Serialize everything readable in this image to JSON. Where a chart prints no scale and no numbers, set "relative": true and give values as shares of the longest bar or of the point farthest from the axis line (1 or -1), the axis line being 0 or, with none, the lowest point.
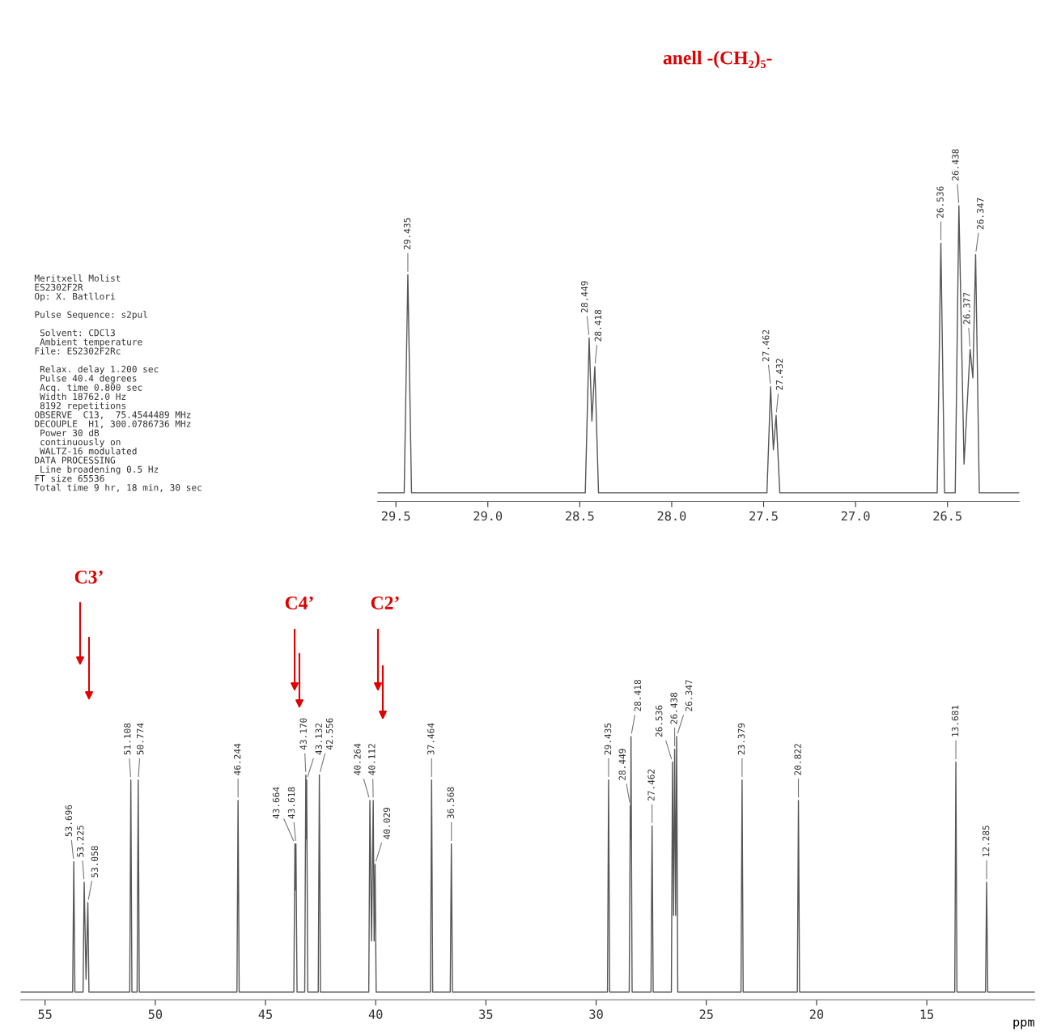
{
  "chart_data": [
    {
      "type": "line",
      "title": "anell -(CH₂)₅-",
      "relative": true,
      "xlim": [
        29.6,
        26.11
      ],
      "xticks": [
        29.5,
        {
          "value": 29.0,
          "label": "29.0"
        },
        28.5,
        {
          "value": 28.0,
          "label": "28.0"
        },
        27.5,
        {
          "value": 27.0,
          "label": "27.0"
        },
        26.5
      ],
      "tick_labels": "x",
      "grid": false,
      "legend": false,
      "marker": "none",
      "line_style": "solid",
      "series": [
        {
          "color": "#555555",
          "x": [
            29.6,
            29.455,
            29.435,
            29.415,
            28.47,
            28.449,
            28.434,
            28.418,
            28.398,
            27.482,
            27.462,
            27.447,
            27.432,
            27.412,
            26.556,
            26.536,
            26.516,
            26.458,
            26.438,
            26.41,
            26.377,
            26.362,
            26.347,
            26.327,
            26.11
          ],
          "values": [
            0,
            0,
            0.76,
            0,
            0,
            0.54,
            0.25,
            0.44,
            0,
            0,
            0.37,
            0.15,
            0.27,
            0,
            0,
            0.87,
            0,
            0,
            1.0,
            0.1,
            0.5,
            0.4,
            0.83,
            0,
            0
          ]
        }
      ],
      "annotations": [
        "Meritxell Molist\nES2302F2R\nOp: X. Batllori\n\nPulse Sequence: s2pul\n\n Solvent: CDCl3\n Ambient temperature\nFile: ES2302F2Rc\n\n Relax. delay 1.200 sec\n Pulse 40.4 degrees\n Acq. time 0.800 sec\n Width 18762.0 Hz\n 8192 repetitions\nOBSERVE  C13,  75.4544489 MHz\nDECOUPLE  H1, 300.0786736 MHz\n Power 30 dB\n continuously on\n WALTZ-16 modulated\nDATA PROCESSING\n Line broadening 0.5 Hz\nFT size 65536\nTotal time 9 hr, 18 min, 30 sec",
        {
          "text": "29.435",
          "x": 29.435,
          "y": 0.76
        },
        {
          "text": "28.449",
          "x": 28.449,
          "y": 0.54
        },
        {
          "text": "28.418",
          "x": 28.418,
          "y": 0.44
        },
        {
          "text": "27.462",
          "x": 27.462,
          "y": 0.37
        },
        {
          "text": "27.432",
          "x": 27.432,
          "y": 0.27
        },
        {
          "text": "26.536",
          "x": 26.536,
          "y": 0.87
        },
        {
          "text": "26.438",
          "x": 26.438,
          "y": 1.0
        },
        {
          "text": "26.377",
          "x": 26.377,
          "y": 0.5
        },
        {
          "text": "26.347",
          "x": 26.347,
          "y": 0.83
        }
      ]
    },
    {
      "type": "line",
      "xlabel": "ppm",
      "relative": true,
      "xlim": [
        56.1,
        10.1
      ],
      "xticks": [
        55,
        50,
        45,
        40,
        35,
        30,
        25,
        20,
        15
      ],
      "tick_labels": "x",
      "grid": false,
      "legend": false,
      "marker": "none",
      "line_style": "solid",
      "series": [
        {
          "color": "#555555",
          "x": [
            56.1,
            53.746,
            53.696,
            53.646,
            53.275,
            53.225,
            53.14,
            53.058,
            53.008,
            51.158,
            51.108,
            51.058,
            50.824,
            50.774,
            50.724,
            46.294,
            46.244,
            46.194,
            43.714,
            43.664,
            43.641,
            43.618,
            43.568,
            43.22,
            43.17,
            43.151,
            43.132,
            43.082,
            42.606,
            42.556,
            42.506,
            40.314,
            40.264,
            40.188,
            40.112,
            40.07,
            40.029,
            39.979,
            37.514,
            37.464,
            37.414,
            36.618,
            36.568,
            36.518,
            29.485,
            29.435,
            29.385,
            28.499,
            28.449,
            28.434,
            28.418,
            28.368,
            27.512,
            27.462,
            27.412,
            26.586,
            26.536,
            26.487,
            26.438,
            26.393,
            26.347,
            26.297,
            23.429,
            23.379,
            23.329,
            20.872,
            20.822,
            20.772,
            13.731,
            13.681,
            13.631,
            12.335,
            12.285,
            12.235,
            10.1
          ],
          "values": [
            0,
            0,
            0.51,
            0,
            0,
            0.43,
            0.05,
            0.35,
            0,
            0,
            0.83,
            0,
            0,
            0.83,
            0,
            0,
            0.75,
            0,
            0,
            0.58,
            0.4,
            0.58,
            0,
            0,
            0.85,
            0.6,
            0.83,
            0,
            0,
            0.85,
            0,
            0,
            0.75,
            0.2,
            0.75,
            0.2,
            0.5,
            0,
            0,
            0.83,
            0,
            0,
            0.58,
            0,
            0,
            0.83,
            0,
            0,
            0.73,
            0.6,
            1.0,
            0,
            0,
            0.65,
            0,
            0,
            0.9,
            0.3,
            0.95,
            0.3,
            1.0,
            0,
            0,
            0.83,
            0,
            0,
            0.75,
            0,
            0,
            0.9,
            0,
            0,
            0.43,
            0,
            0
          ]
        }
      ],
      "annotations": [
        "C3’",
        "C4’",
        "C2’",
        {
          "text": "53.696",
          "x": 53.696,
          "y": 0.51
        },
        {
          "text": "53.225",
          "x": 53.225,
          "y": 0.43
        },
        {
          "text": "53.058",
          "x": 53.058,
          "y": 0.35
        },
        {
          "text": "51.108",
          "x": 51.108,
          "y": 0.83
        },
        {
          "text": "50.774",
          "x": 50.774,
          "y": 0.83
        },
        {
          "text": "46.244",
          "x": 46.244,
          "y": 0.75
        },
        {
          "text": "43.664",
          "x": 43.664,
          "y": 0.58
        },
        {
          "text": "43.618",
          "x": 43.618,
          "y": 0.58
        },
        {
          "text": "43.170",
          "x": 43.17,
          "y": 0.85
        },
        {
          "text": "43.132",
          "x": 43.132,
          "y": 0.83
        },
        {
          "text": "42.556",
          "x": 42.556,
          "y": 0.85
        },
        {
          "text": "40.264",
          "x": 40.264,
          "y": 0.75
        },
        {
          "text": "40.112",
          "x": 40.112,
          "y": 0.75
        },
        {
          "text": "40.029",
          "x": 40.029,
          "y": 0.5
        },
        {
          "text": "37.464",
          "x": 37.464,
          "y": 0.83
        },
        {
          "text": "36.568",
          "x": 36.568,
          "y": 0.58
        },
        {
          "text": "29.435",
          "x": 29.435,
          "y": 0.83
        },
        {
          "text": "28.449",
          "x": 28.449,
          "y": 0.73
        },
        {
          "text": "28.418",
          "x": 28.418,
          "y": 1.0
        },
        {
          "text": "27.462",
          "x": 27.462,
          "y": 0.65
        },
        {
          "text": "26.536",
          "x": 26.536,
          "y": 0.9
        },
        {
          "text": "26.438",
          "x": 26.438,
          "y": 0.95
        },
        {
          "text": "26.347",
          "x": 26.347,
          "y": 1.0
        },
        {
          "text": "23.379",
          "x": 23.379,
          "y": 0.83
        },
        {
          "text": "20.822",
          "x": 20.822,
          "y": 0.75
        },
        {
          "text": "13.681",
          "x": 13.681,
          "y": 0.9
        },
        {
          "text": "12.285",
          "x": 12.285,
          "y": 0.43
        }
      ]
    }
  ]
}
